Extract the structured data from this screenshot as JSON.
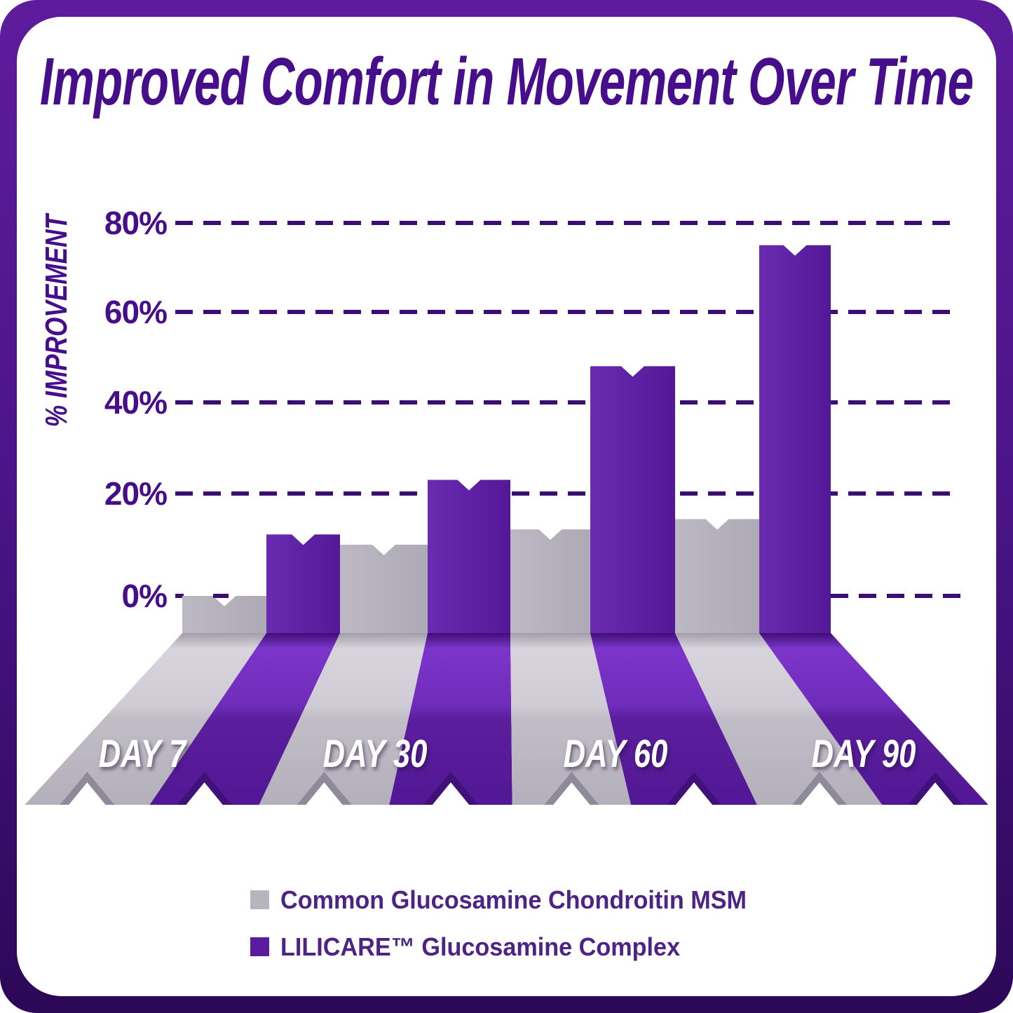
{
  "title": "Improved Comfort in Movement Over Time",
  "chart_data": {
    "type": "bar",
    "title": "Improved Comfort in Movement Over Time",
    "xlabel": "",
    "ylabel": "% IMPROVEMENT",
    "categories": [
      "DAY 7",
      "DAY 30",
      "DAY 60",
      "DAY 90"
    ],
    "series": [
      {
        "name": "Common Glucosamine Chondroitin MSM",
        "color": "#b8b4be",
        "values": [
          0,
          10,
          13,
          15
        ]
      },
      {
        "name": "LILICARE™ Glucosamine Complex",
        "color": "#5d1f9f",
        "values": [
          12,
          23,
          48,
          75
        ]
      }
    ],
    "yticks": [
      "0%",
      "20%",
      "40%",
      "60%",
      "80%"
    ],
    "ytick_values": [
      0,
      20,
      40,
      60,
      80
    ],
    "ylim": [
      0,
      80
    ],
    "grid": "horizontal dashed lines",
    "legend_position": "bottom",
    "style": "3D perspective bars with notched ribbon bases"
  },
  "legend": {
    "items": [
      {
        "label": "Common Glucosamine Chondroitin MSM",
        "color": "#b8b4be"
      },
      {
        "label": "LILICARE™ Glucosamine Complex",
        "color": "#5a1b9e"
      }
    ]
  },
  "colors": {
    "frame_top": "#5e1c9c",
    "frame_bottom": "#2c0857",
    "card_background": "#ffffff",
    "title_text": "#470e8c",
    "grid_line": "#3b0f72",
    "tick_text": "#470e8c",
    "legend_text": "#4e2386",
    "day_label_text": "#ffffff",
    "bar_gray": "#b8b4be",
    "bar_purple": "#5d1f9f"
  }
}
